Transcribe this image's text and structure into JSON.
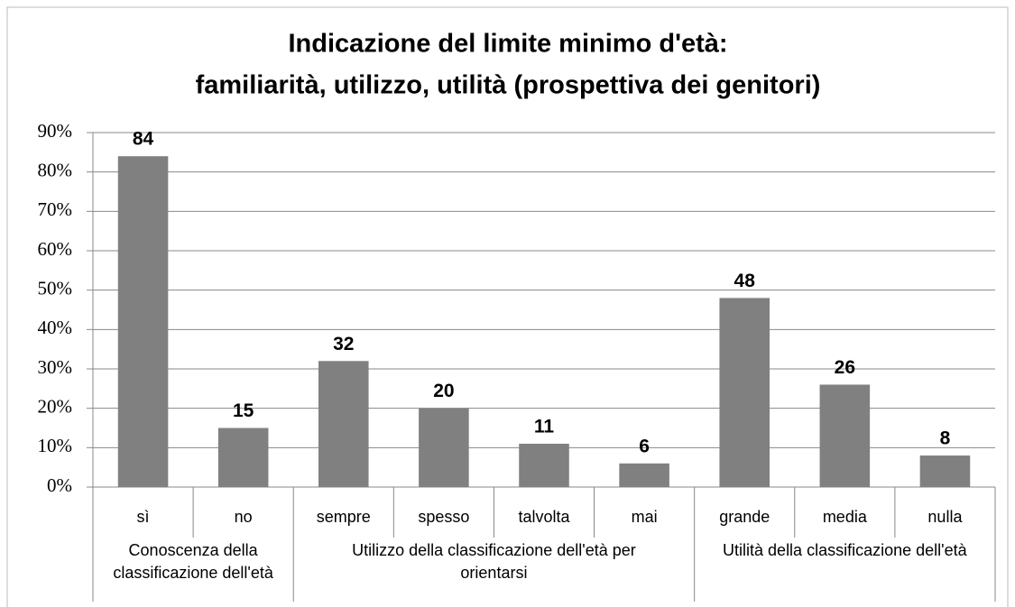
{
  "chart_data": {
    "type": "bar",
    "title": [
      "Indicazione del limite minimo d'età:",
      "familiarità, utilizzo, utilità (prospettiva dei genitori)"
    ],
    "categories": [
      "sì",
      "no",
      "sempre",
      "spesso",
      "talvolta",
      "mai",
      "grande",
      "media",
      "nulla"
    ],
    "values": [
      84,
      15,
      32,
      20,
      11,
      6,
      48,
      26,
      8
    ],
    "groups": [
      {
        "label": [
          "Conoscenza della",
          "classificazione dell'età"
        ],
        "span": 2
      },
      {
        "label": [
          "Utilizzo della classificazione dell'età per",
          "orientarsi"
        ],
        "span": 4
      },
      {
        "label": [
          "Utilità della classificazione dell'età"
        ],
        "span": 3
      }
    ],
    "color": "#808080",
    "ylim": [
      0,
      90
    ],
    "yticks": [
      {
        "value": 0,
        "label": "0%"
      },
      {
        "value": 10,
        "label": "10%"
      },
      {
        "value": 20,
        "label": "20%"
      },
      {
        "value": 30,
        "label": "30%"
      },
      {
        "value": 40,
        "label": "40%"
      },
      {
        "value": 50,
        "label": "50%"
      },
      {
        "value": 60,
        "label": "60%"
      },
      {
        "value": 70,
        "label": "70%"
      },
      {
        "value": 80,
        "label": "80%"
      },
      {
        "value": 90,
        "label": "90%"
      }
    ],
    "grid": true
  }
}
